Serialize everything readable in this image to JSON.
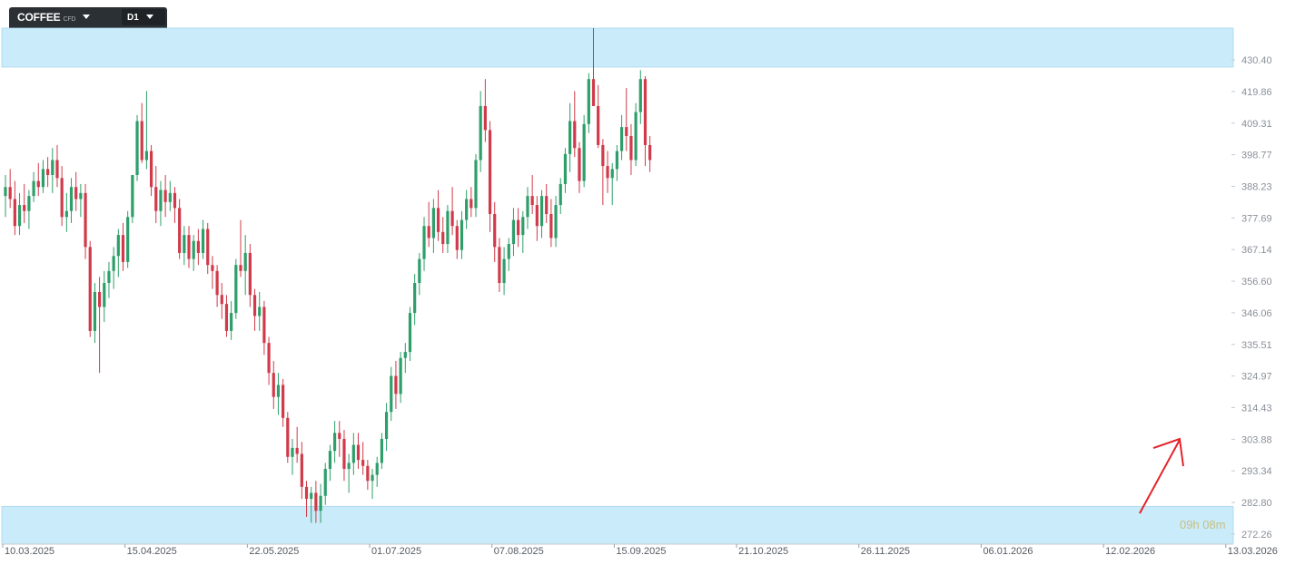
{
  "toolbar": {
    "symbol": "COFFEE",
    "symbol_type": "CFD",
    "symbol_dropdown_icon": "caret-down-icon",
    "timeframe": "D1",
    "timeframe_dropdown_icon": "caret-down-icon"
  },
  "colors": {
    "bull": "#2e9e6a",
    "bear": "#d03a4a",
    "zone": "#c9ebfa",
    "arrow": "#e3242b"
  },
  "countdown": "09h 08m",
  "annotation_icon": "arrow-up-right-icon",
  "chart_data": {
    "type": "candlestick",
    "title": "",
    "xlabel": "",
    "ylabel": "",
    "y_ticks": [
      "430.40",
      "419.86",
      "409.31",
      "398.77",
      "388.23",
      "377.69",
      "367.14",
      "356.60",
      "346.06",
      "335.51",
      "324.97",
      "314.43",
      "303.88",
      "293.34",
      "282.80",
      "272.26"
    ],
    "ylim": [
      268.9,
      441.0
    ],
    "x_ticks": [
      {
        "label": "10.03.2025",
        "index": 0
      },
      {
        "label": "15.04.2025",
        "index": 26
      },
      {
        "label": "22.05.2025",
        "index": 52
      },
      {
        "label": "01.07.2025",
        "index": 78
      },
      {
        "label": "07.08.2025",
        "index": 104
      },
      {
        "label": "15.09.2025",
        "index": 130
      },
      {
        "label": "21.10.2025",
        "index": 156
      },
      {
        "label": "26.11.2025",
        "index": 182
      },
      {
        "label": "06.01.2026",
        "index": 208
      },
      {
        "label": "12.02.2026",
        "index": 234
      },
      {
        "label": "13.03.2026",
        "index": 260
      }
    ],
    "zones": [
      {
        "low": 428.0,
        "high": 441.0
      },
      {
        "low": 268.9,
        "high": 281.5
      }
    ],
    "ohlc": [
      [
        385,
        392,
        378,
        388
      ],
      [
        388,
        394,
        381,
        384
      ],
      [
        384,
        390,
        372,
        375
      ],
      [
        375,
        386,
        372,
        382
      ],
      [
        382,
        389,
        376,
        380
      ],
      [
        380,
        387,
        374,
        385
      ],
      [
        385,
        393,
        383,
        390
      ],
      [
        390,
        396,
        385,
        388
      ],
      [
        388,
        397,
        386,
        394
      ],
      [
        394,
        398,
        388,
        392
      ],
      [
        392,
        401,
        386,
        397
      ],
      [
        397,
        402,
        388,
        391
      ],
      [
        391,
        395,
        375,
        378
      ],
      [
        378,
        386,
        373,
        380
      ],
      [
        380,
        391,
        376,
        388
      ],
      [
        388,
        393,
        380,
        384
      ],
      [
        384,
        389,
        378,
        386
      ],
      [
        386,
        389,
        364,
        368
      ],
      [
        368,
        370,
        338,
        340
      ],
      [
        340,
        356,
        336,
        353
      ],
      [
        353,
        358,
        326,
        348
      ],
      [
        348,
        360,
        343,
        356
      ],
      [
        356,
        363,
        351,
        360
      ],
      [
        360,
        368,
        354,
        365
      ],
      [
        365,
        374,
        358,
        372
      ],
      [
        372,
        376,
        360,
        363
      ],
      [
        363,
        380,
        361,
        378
      ],
      [
        378,
        392,
        376,
        392
      ],
      [
        392,
        412,
        390,
        410
      ],
      [
        410,
        416,
        396,
        397
      ],
      [
        397,
        420,
        394,
        400
      ],
      [
        400,
        402,
        385,
        388
      ],
      [
        388,
        395,
        376,
        380
      ],
      [
        380,
        390,
        375,
        387
      ],
      [
        387,
        392,
        378,
        383
      ],
      [
        383,
        390,
        380,
        386
      ],
      [
        386,
        388,
        376,
        381
      ],
      [
        381,
        384,
        364,
        366
      ],
      [
        366,
        375,
        362,
        372
      ],
      [
        372,
        375,
        361,
        364
      ],
      [
        364,
        372,
        360,
        370
      ],
      [
        370,
        374,
        362,
        366
      ],
      [
        366,
        377,
        364,
        374
      ],
      [
        374,
        376,
        359,
        362
      ],
      [
        362,
        365,
        354,
        360
      ],
      [
        360,
        362,
        348,
        352
      ],
      [
        352,
        356,
        344,
        349
      ],
      [
        349,
        352,
        338,
        340
      ],
      [
        340,
        350,
        337,
        346
      ],
      [
        346,
        364,
        344,
        362
      ],
      [
        362,
        377,
        358,
        360
      ],
      [
        360,
        372,
        352,
        366
      ],
      [
        366,
        369,
        348,
        352
      ],
      [
        352,
        354,
        340,
        345
      ],
      [
        345,
        353,
        340,
        348
      ],
      [
        348,
        350,
        332,
        336
      ],
      [
        336,
        338,
        322,
        326
      ],
      [
        326,
        330,
        314,
        318
      ],
      [
        318,
        326,
        312,
        322
      ],
      [
        322,
        324,
        308,
        311
      ],
      [
        311,
        313,
        296,
        298
      ],
      [
        298,
        304,
        292,
        301
      ],
      [
        301,
        308,
        296,
        299
      ],
      [
        299,
        303,
        284,
        288
      ],
      [
        288,
        290,
        278,
        284
      ],
      [
        284,
        288,
        276,
        286
      ],
      [
        286,
        290,
        276,
        280
      ],
      [
        280,
        289,
        276,
        285
      ],
      [
        285,
        296,
        282,
        294
      ],
      [
        294,
        302,
        290,
        300
      ],
      [
        300,
        310,
        296,
        306
      ],
      [
        306,
        310,
        298,
        304
      ],
      [
        304,
        307,
        290,
        294
      ],
      [
        294,
        299,
        286,
        296
      ],
      [
        296,
        306,
        292,
        302
      ],
      [
        302,
        306,
        294,
        297
      ],
      [
        297,
        303,
        292,
        295
      ],
      [
        295,
        297,
        287,
        290
      ],
      [
        290,
        294,
        284,
        292
      ],
      [
        292,
        298,
        288,
        296
      ],
      [
        296,
        306,
        294,
        304
      ],
      [
        304,
        316,
        300,
        313
      ],
      [
        313,
        328,
        310,
        325
      ],
      [
        325,
        330,
        314,
        319
      ],
      [
        319,
        333,
        316,
        331
      ],
      [
        331,
        336,
        326,
        333
      ],
      [
        333,
        348,
        330,
        346
      ],
      [
        346,
        359,
        342,
        356
      ],
      [
        356,
        366,
        352,
        364
      ],
      [
        364,
        378,
        360,
        375
      ],
      [
        375,
        383,
        368,
        371
      ],
      [
        371,
        384,
        366,
        381
      ],
      [
        381,
        387,
        370,
        373
      ],
      [
        373,
        378,
        366,
        369
      ],
      [
        369,
        382,
        366,
        380
      ],
      [
        380,
        388,
        372,
        375
      ],
      [
        375,
        377,
        364,
        367
      ],
      [
        367,
        380,
        364,
        377
      ],
      [
        377,
        387,
        374,
        384
      ],
      [
        384,
        388,
        378,
        381
      ],
      [
        381,
        399,
        378,
        397
      ],
      [
        397,
        420,
        393,
        415
      ],
      [
        415,
        424,
        403,
        407
      ],
      [
        407,
        410,
        373,
        379
      ],
      [
        379,
        383,
        363,
        368
      ],
      [
        368,
        371,
        353,
        356
      ],
      [
        356,
        368,
        352,
        364
      ],
      [
        364,
        371,
        360,
        369
      ],
      [
        369,
        381,
        365,
        377
      ],
      [
        377,
        381,
        368,
        372
      ],
      [
        372,
        380,
        366,
        378
      ],
      [
        378,
        388,
        374,
        385
      ],
      [
        385,
        392,
        379,
        382
      ],
      [
        382,
        385,
        370,
        375
      ],
      [
        375,
        387,
        371,
        385
      ],
      [
        385,
        389,
        376,
        379
      ],
      [
        379,
        384,
        368,
        371
      ],
      [
        371,
        385,
        368,
        382
      ],
      [
        382,
        391,
        379,
        389
      ],
      [
        389,
        401,
        386,
        399
      ],
      [
        399,
        416,
        393,
        410
      ],
      [
        410,
        420,
        398,
        401
      ],
      [
        401,
        403,
        386,
        390
      ],
      [
        390,
        412,
        388,
        409
      ],
      [
        409,
        426,
        406,
        424
      ],
      [
        424,
        441,
        416,
        415
      ],
      [
        415,
        422,
        401,
        402
      ],
      [
        402,
        404,
        382,
        395
      ],
      [
        395,
        400,
        386,
        391
      ],
      [
        391,
        396,
        382,
        394
      ],
      [
        394,
        402,
        390,
        400
      ],
      [
        400,
        412,
        397,
        408
      ],
      [
        408,
        421,
        400,
        405
      ],
      [
        405,
        409,
        392,
        397
      ],
      [
        397,
        416,
        395,
        413
      ],
      [
        413,
        427,
        409,
        424
      ],
      [
        424,
        425,
        395,
        402
      ],
      [
        402,
        405,
        393,
        397
      ]
    ]
  }
}
